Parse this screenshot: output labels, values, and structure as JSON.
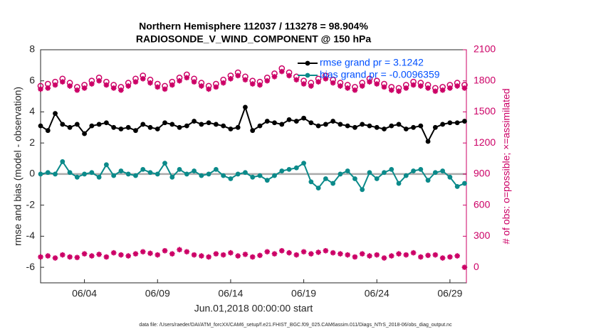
{
  "chart_data": {
    "type": "line",
    "title": "Northern Hemisphere 112037 / 113278 = 98.904%",
    "subtitle": "RADIOSONDE_V_WIND_COMPONENT @ 150 hPa",
    "x_label": "Jun.01,2018 00:00:00 start",
    "y_label": "rmse and bias (model - observation)",
    "y2_label": "# of obs: o=possible; ×=assimilated",
    "footnote": "data file: /Users/raeder/DAI/ATM_forcXX/CAM6_setup/f.e21.FHIST_BGC.f09_025.CAM6assim.011/Diags_NTrS_2018-06/obs_diag_output.nc",
    "grid": false,
    "legend": "upper-right",
    "xlim": [
      0,
      29.125
    ],
    "xticks": [
      {
        "value": 3,
        "label": "06/04"
      },
      {
        "value": 8,
        "label": "06/09"
      },
      {
        "value": 13,
        "label": "06/14"
      },
      {
        "value": 18,
        "label": "06/19"
      },
      {
        "value": 23,
        "label": "06/24"
      },
      {
        "value": 28,
        "label": "06/29"
      }
    ],
    "ylim": [
      -7,
      8
    ],
    "yticks": [
      -6,
      -4,
      -2,
      0,
      2,
      4,
      6,
      8
    ],
    "y2lim": [
      -150,
      2100
    ],
    "y2ticks": [
      0,
      300,
      600,
      900,
      1200,
      1500,
      1800,
      2100
    ],
    "y2_color": "#cc0066",
    "x": [
      0,
      0.5,
      1,
      1.5,
      2,
      2.5,
      3,
      3.5,
      4,
      4.5,
      5,
      5.5,
      6,
      6.5,
      7,
      7.5,
      8,
      8.5,
      9,
      9.5,
      10,
      10.5,
      11,
      11.5,
      12,
      12.5,
      13,
      13.5,
      14,
      14.5,
      15,
      15.5,
      16,
      16.5,
      17,
      17.5,
      18,
      18.5,
      19,
      19.5,
      20,
      20.5,
      21,
      21.5,
      22,
      22.5,
      23,
      23.5,
      24,
      24.5,
      25,
      25.5,
      26,
      26.5,
      27,
      27.5,
      28,
      28.5,
      29
    ],
    "series": [
      {
        "name": "rmse grand pr = 3.1242",
        "color": "#000000",
        "marker": "dot",
        "line": true,
        "values": [
          3.1,
          2.8,
          3.9,
          3.2,
          3.0,
          3.2,
          2.6,
          3.1,
          3.2,
          3.3,
          3.0,
          2.9,
          3.0,
          2.8,
          3.2,
          3.0,
          2.9,
          3.3,
          3.2,
          3.0,
          3.1,
          3.4,
          3.2,
          3.3,
          3.2,
          3.1,
          2.9,
          3.0,
          4.3,
          2.8,
          3.1,
          3.4,
          3.3,
          3.2,
          3.5,
          3.4,
          3.6,
          3.3,
          3.1,
          3.2,
          3.4,
          3.2,
          3.1,
          3.0,
          3.2,
          3.1,
          3.0,
          2.9,
          3.1,
          3.2,
          2.9,
          3.0,
          3.1,
          2.1,
          3.0,
          3.2,
          3.3,
          3.3,
          3.4
        ]
      },
      {
        "name": "bias grand pr = -0.0096359",
        "color": "#0b8a8a",
        "marker": "dot",
        "line": true,
        "values": [
          0.0,
          0.1,
          0.0,
          0.8,
          0.1,
          -0.2,
          0.0,
          0.1,
          -0.2,
          0.6,
          -0.1,
          0.2,
          0.0,
          -0.1,
          0.3,
          0.1,
          0.0,
          0.7,
          -0.2,
          0.3,
          0.0,
          0.2,
          -0.1,
          0.0,
          0.3,
          -0.1,
          -0.3,
          0.0,
          0.1,
          -0.2,
          -0.1,
          -0.4,
          -0.1,
          0.2,
          0.3,
          0.4,
          0.7,
          -0.5,
          -0.9,
          -0.3,
          -0.6,
          0.0,
          0.2,
          -0.3,
          -1.0,
          0.1,
          -0.3,
          0.1,
          0.3,
          -0.6,
          -0.1,
          0.2,
          0.3,
          -0.4,
          0.1,
          0.2,
          -0.2,
          -0.8,
          -0.6
        ]
      },
      {
        "color": "#cc0066",
        "marker": "circle",
        "line": false,
        "axis": "y2",
        "values": [
          1750,
          1770,
          1790,
          1820,
          1780,
          1740,
          1760,
          1800,
          1830,
          1790,
          1760,
          1740,
          1780,
          1820,
          1850,
          1810,
          1770,
          1750,
          1790,
          1830,
          1860,
          1820,
          1780,
          1750,
          1770,
          1810,
          1850,
          1880,
          1840,
          1800,
          1790,
          1830,
          1870,
          1920,
          1880,
          1840,
          1800,
          1780,
          1820,
          1850,
          1810,
          1780,
          1760,
          1740,
          1780,
          1820,
          1800,
          1770,
          1740,
          1730,
          1760,
          1790,
          1780,
          1760,
          1730,
          1740,
          1760,
          1780,
          1760
        ]
      },
      {
        "color": "#cc0066",
        "marker": "star",
        "line": false,
        "axis": "y2",
        "values": [
          1720,
          1730,
          1760,
          1790,
          1750,
          1710,
          1730,
          1770,
          1800,
          1760,
          1730,
          1710,
          1750,
          1790,
          1820,
          1780,
          1740,
          1720,
          1760,
          1800,
          1830,
          1790,
          1750,
          1720,
          1740,
          1780,
          1820,
          1850,
          1810,
          1770,
          1760,
          1800,
          1840,
          1890,
          1850,
          1810,
          1770,
          1750,
          1790,
          1820,
          1780,
          1750,
          1730,
          1710,
          1750,
          1790,
          1770,
          1740,
          1710,
          1700,
          1730,
          1760,
          1750,
          1730,
          1700,
          1710,
          1730,
          1750,
          1730
        ]
      },
      {
        "color": "#cc0066",
        "marker": "star",
        "line": false,
        "axis": "y2",
        "values": [
          100,
          110,
          90,
          120,
          100,
          95,
          130,
          110,
          125,
          100,
          140,
          120,
          110,
          130,
          150,
          135,
          120,
          160,
          130,
          170,
          150,
          120,
          110,
          100,
          130,
          120,
          140,
          110,
          125,
          100,
          115,
          150,
          130,
          160,
          140,
          120,
          150,
          130,
          145,
          160,
          140,
          130,
          120,
          100,
          130,
          110,
          120,
          90,
          110,
          130,
          120,
          140,
          100,
          115,
          120,
          90,
          100,
          110,
          0
        ]
      }
    ]
  }
}
